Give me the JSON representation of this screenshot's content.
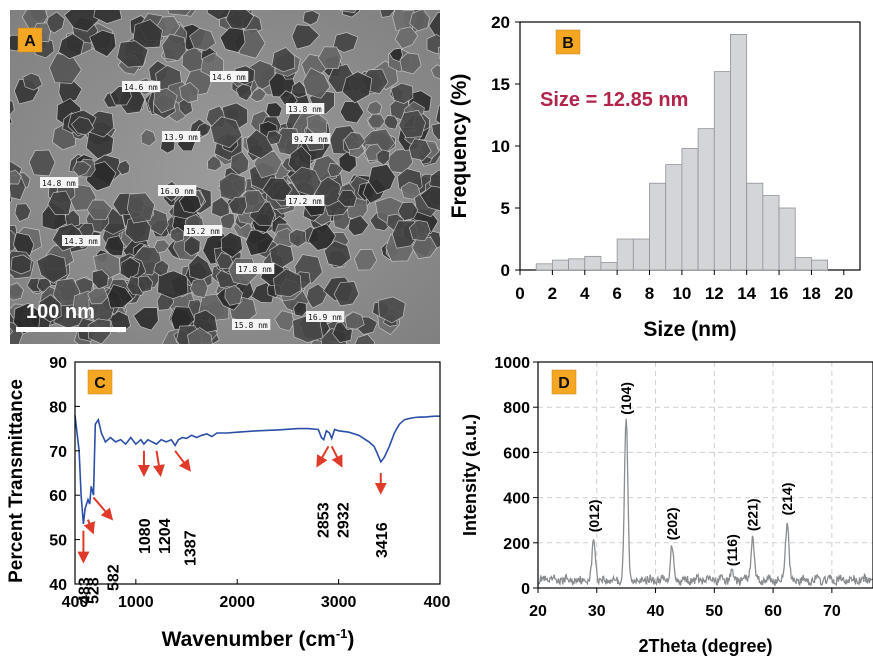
{
  "panels": {
    "a": {
      "badge": "A",
      "scale_bar_label": "100 nm",
      "particle_labels": [
        "14.6 nm",
        "14.6 nm",
        "13.8 nm",
        "13.9 nm",
        "9.74 nm",
        "14.8 nm",
        "16.0 nm",
        "17.2 nm",
        "15.2 nm",
        "14.3 nm",
        "17.8 nm",
        "16.9 nm",
        "15.8 nm"
      ]
    },
    "b": {
      "badge": "B",
      "annotation": "Size = 12.85 nm"
    },
    "c": {
      "badge": "C"
    },
    "d": {
      "badge": "D"
    }
  },
  "colors": {
    "badge_fill": "#f5a623",
    "bar_fill": "#d3d5d8",
    "ftir_line": "#2b4fa8",
    "arrow": "#e03a2a",
    "annotation": "#b2244a",
    "xrd_line": "#8a8d90"
  },
  "chart_data": [
    {
      "type": "bar",
      "panel": "B",
      "title": "",
      "xlabel": "Size (nm)",
      "ylabel": "Frequency (%)",
      "xlim": [
        0,
        21
      ],
      "ylim": [
        0,
        20
      ],
      "xticks": [
        0,
        2,
        4,
        6,
        8,
        10,
        12,
        14,
        16,
        18,
        20
      ],
      "yticks": [
        0,
        5,
        10,
        15,
        20
      ],
      "bin_width": 1,
      "x": [
        1.5,
        2.5,
        3.5,
        4.5,
        5.5,
        6.5,
        7.5,
        8.5,
        9.5,
        10.5,
        11.5,
        12.5,
        13.5,
        14.5,
        15.5,
        16.5,
        17.5,
        18.5,
        19.5
      ],
      "values": [
        0.5,
        0.8,
        0.9,
        1.1,
        0.6,
        2.5,
        2.5,
        7.0,
        8.5,
        9.8,
        11.4,
        16.0,
        19.0,
        7.0,
        6.0,
        5.0,
        1.0,
        0.8,
        0.0
      ],
      "annotation": "Size = 12.85 nm",
      "grid": false
    },
    {
      "type": "line",
      "panel": "C",
      "title": "",
      "xlabel": "Wavenumber (cm",
      "xlabel_sup": "-1",
      "xlabel_close": ")",
      "ylabel": "Percent Transmittance",
      "xlim": [
        400,
        4000
      ],
      "ylim": [
        40,
        90
      ],
      "xticks": [
        1000,
        2000,
        3000
      ],
      "xtick_labels": [
        "1000",
        "2000",
        "3000"
      ],
      "edge_xtick_labels": [
        "400",
        "400"
      ],
      "yticks": [
        40,
        50,
        60,
        70,
        80,
        90
      ],
      "grid": false,
      "series": [
        {
          "x": [
            400,
            440,
            460,
            483,
            500,
            528,
            545,
            560,
            582,
            600,
            630,
            660,
            700,
            750,
            800,
            850,
            900,
            950,
            1000,
            1050,
            1080,
            1120,
            1160,
            1204,
            1250,
            1300,
            1350,
            1387,
            1420,
            1460,
            1500,
            1550,
            1600,
            1650,
            1700,
            1750,
            1800,
            1900,
            2000,
            2200,
            2400,
            2600,
            2700,
            2800,
            2830,
            2853,
            2880,
            2910,
            2932,
            2960,
            3000,
            3100,
            3200,
            3300,
            3350,
            3380,
            3416,
            3450,
            3500,
            3550,
            3600,
            3650,
            3700,
            3750,
            3800,
            3850,
            3900,
            3950,
            4000
          ],
          "y": [
            78,
            70,
            60,
            53.5,
            57,
            59,
            58,
            62,
            60,
            76,
            77,
            74,
            72,
            73,
            72,
            72.5,
            71.5,
            73,
            71.5,
            72.5,
            71.5,
            72.5,
            72,
            71.5,
            72.5,
            72,
            72.5,
            71.2,
            72.5,
            73,
            72.8,
            73.5,
            73,
            73.5,
            73.8,
            73.2,
            74,
            74,
            74.2,
            74.5,
            74.7,
            75,
            75,
            74.8,
            73,
            72.5,
            74.5,
            74,
            72.8,
            74.8,
            74.5,
            74.2,
            73.5,
            72,
            71,
            69.5,
            67.5,
            68.5,
            71,
            74,
            76,
            77,
            77.3,
            77.5,
            77.6,
            77.6,
            77.7,
            77.8,
            77.8
          ]
        }
      ],
      "peak_labels": [
        {
          "x": 483,
          "label": "483"
        },
        {
          "x": 528,
          "label": "528"
        },
        {
          "x": 582,
          "label": "582"
        },
        {
          "x": 1080,
          "label": "1080"
        },
        {
          "x": 1204,
          "label": "1204"
        },
        {
          "x": 1387,
          "label": "1387"
        },
        {
          "x": 2853,
          "label": "2853"
        },
        {
          "x": 2932,
          "label": "2932"
        },
        {
          "x": 3416,
          "label": "3416"
        }
      ]
    },
    {
      "type": "line",
      "panel": "D",
      "title": "",
      "xlabel": "2Theta (degree)",
      "ylabel": "Intensity (a.u.)",
      "xlim": [
        20,
        77
      ],
      "ylim": [
        0,
        1000
      ],
      "xticks": [
        20,
        30,
        40,
        50,
        60,
        70
      ],
      "yticks": [
        0,
        200,
        400,
        600,
        800,
        1000
      ],
      "grid": true,
      "series": [
        {
          "peaks": [
            {
              "x": 29.5,
              "y": 220
            },
            {
              "x": 35.0,
              "y": 740
            },
            {
              "x": 42.8,
              "y": 185
            },
            {
              "x": 53.0,
              "y": 70
            },
            {
              "x": 56.5,
              "y": 225
            },
            {
              "x": 62.4,
              "y": 295
            }
          ],
          "baseline": 35,
          "noise": 25
        }
      ],
      "peak_labels": [
        {
          "x": 29.5,
          "y": 220,
          "label": "(012)"
        },
        {
          "x": 35.0,
          "y": 740,
          "label": "(104)"
        },
        {
          "x": 42.8,
          "y": 185,
          "label": "(202)"
        },
        {
          "x": 53.0,
          "y": 70,
          "label": "(116)"
        },
        {
          "x": 56.5,
          "y": 225,
          "label": "(221)"
        },
        {
          "x": 62.4,
          "y": 295,
          "label": "(214)"
        }
      ]
    }
  ]
}
